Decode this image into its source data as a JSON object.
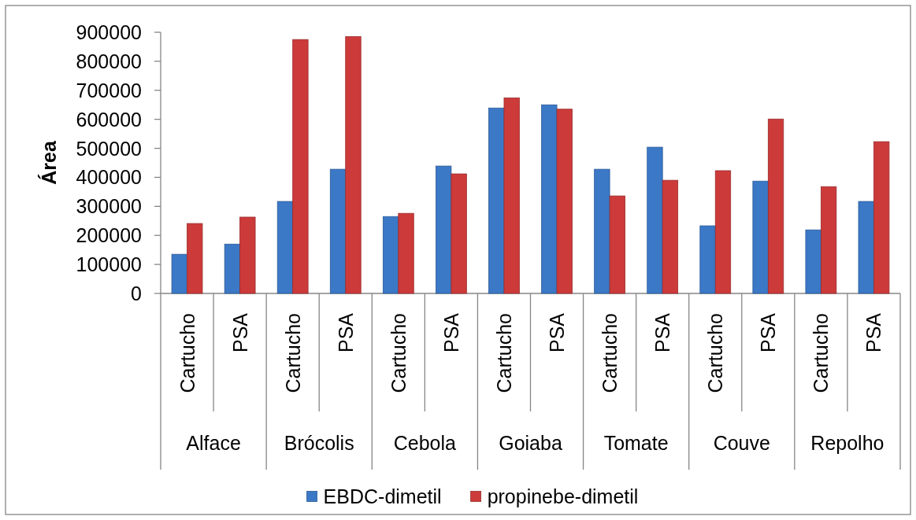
{
  "chart_data": {
    "type": "bar",
    "ylabel": "Área",
    "categories": [
      "Cartucho",
      "PSA",
      "Cartucho",
      "PSA",
      "Cartucho",
      "PSA",
      "Cartucho",
      "PSA",
      "Cartucho",
      "PSA",
      "Cartucho",
      "PSA",
      "Cartucho",
      "PSA"
    ],
    "annotations": [
      "Alface",
      "Brócolis",
      "Cebola",
      "Goiaba",
      "Tomate",
      "Couve",
      "Repolho"
    ],
    "series": [
      {
        "name": "EBDC-dimetil",
        "color": "#3b78c6",
        "values": [
          135000,
          170000,
          317000,
          428000,
          265000,
          439000,
          639000,
          650000,
          428000,
          504000,
          233000,
          387000,
          219000,
          317000
        ]
      },
      {
        "name": "propinebe-dimetil",
        "color": "#cc3a3a",
        "values": [
          241000,
          263000,
          875000,
          885000,
          276000,
          412000,
          674000,
          635000,
          336000,
          390000,
          423000,
          601000,
          368000,
          523000
        ]
      }
    ],
    "ylim": [
      0,
      900000
    ],
    "yticks": [
      0,
      100000,
      200000,
      300000,
      400000,
      500000,
      600000,
      700000,
      800000,
      900000
    ],
    "legend": "bottom"
  }
}
